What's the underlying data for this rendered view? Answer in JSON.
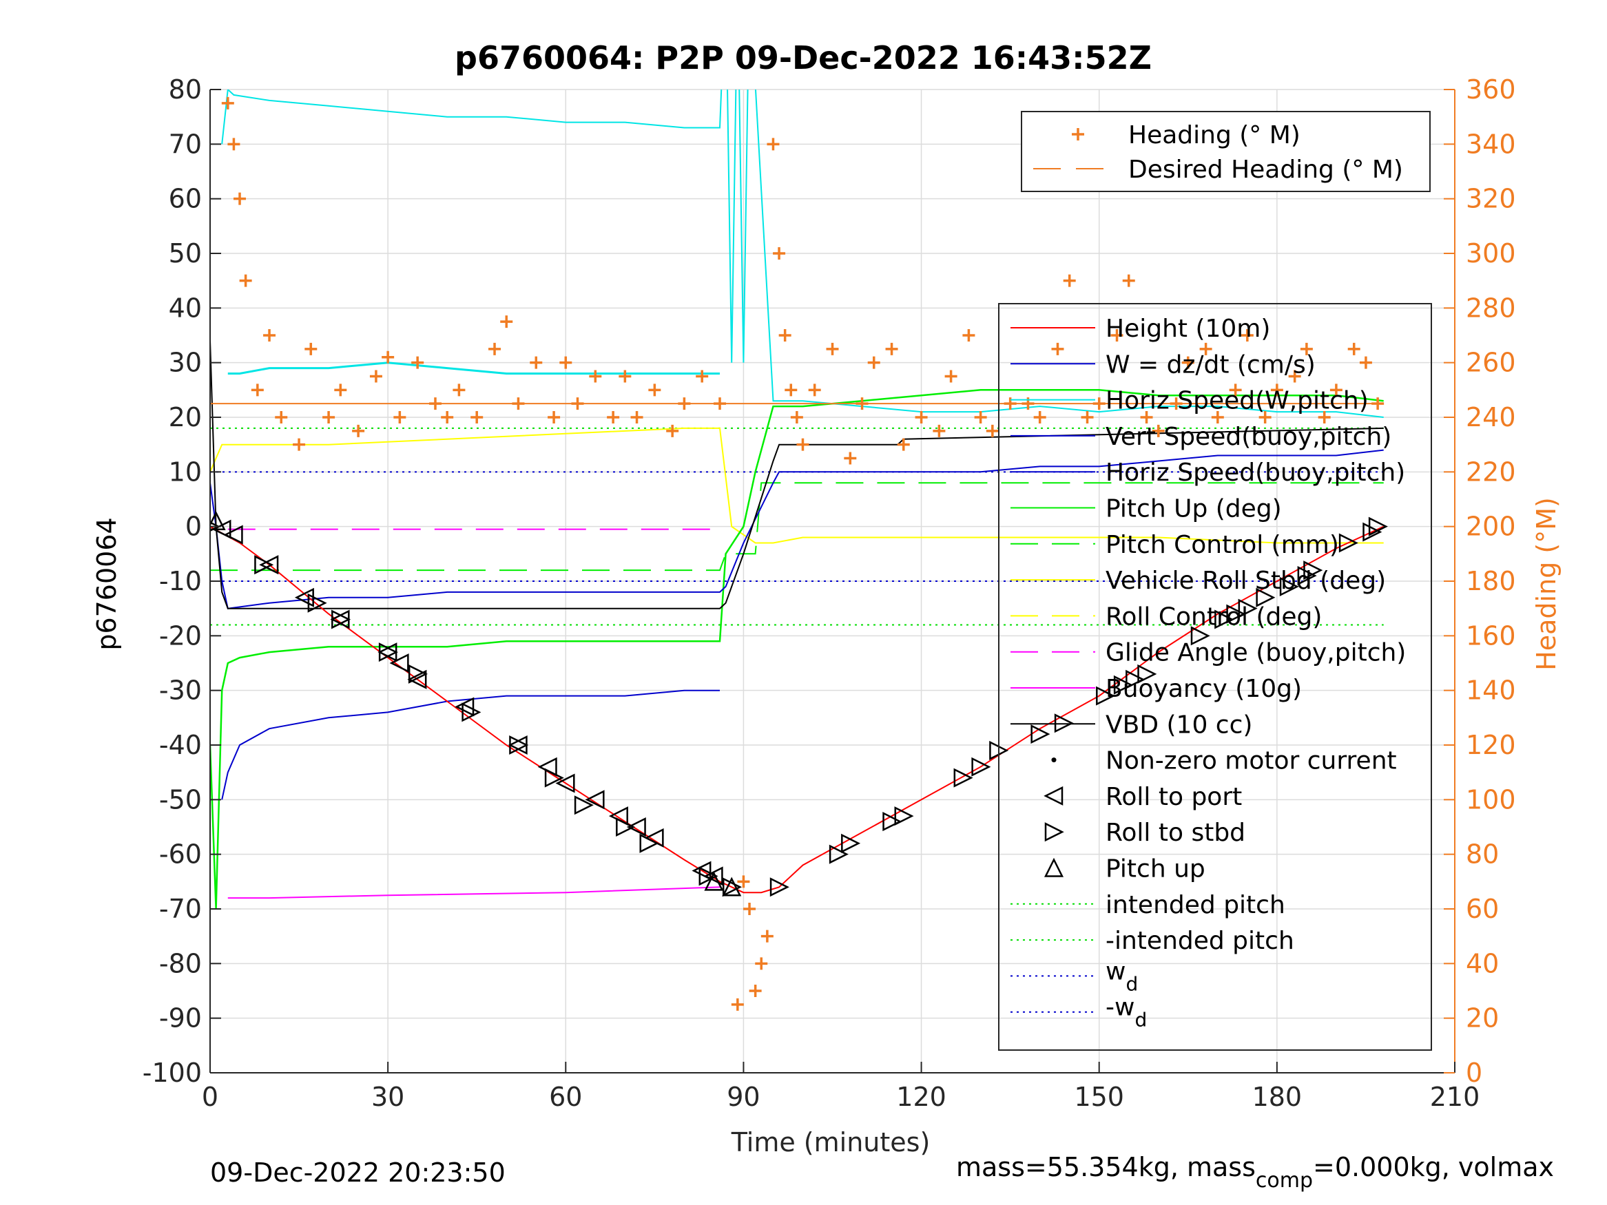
{
  "chart_data": {
    "type": "line",
    "title": "p6760064: P2P 09-Dec-2022 16:43:52Z",
    "xlabel": "Time (minutes)",
    "ylabel": "p6760064",
    "y2label": "Heading (°M)",
    "xlim": [
      0,
      210
    ],
    "ylim": [
      -100,
      80
    ],
    "y2lim": [
      0,
      360
    ],
    "xticks": [
      "0",
      "30",
      "60",
      "90",
      "120",
      "150",
      "180",
      "210"
    ],
    "yticks": [
      "80",
      "70",
      "60",
      "50",
      "40",
      "30",
      "20",
      "10",
      "0",
      "-10",
      "-20",
      "-30",
      "-40",
      "-50",
      "-60",
      "-70",
      "-80",
      "-90",
      "-100"
    ],
    "y2ticks": [
      "360",
      "340",
      "320",
      "300",
      "280",
      "260",
      "240",
      "220",
      "200",
      "180",
      "160",
      "140",
      "120",
      "100",
      "80",
      "60",
      "40",
      "20",
      "0"
    ],
    "grid": true,
    "footer_left": "09-Dec-2022 20:23:50",
    "footer_right": {
      "a": "mass=55.354kg, mass",
      "sub": "comp",
      "b": "=0.000kg, volmax"
    },
    "legend_heading": {
      "placement": "top-right",
      "entries": [
        "Heading (° M)",
        "Desired Heading (° M)"
      ]
    },
    "legend_main": {
      "placement": "right",
      "entries": [
        "Height (10m)",
        "W = dz/dt (cm/s)",
        "Horiz Speed(W,pitch)",
        "Vert Speed(buoy,pitch)",
        "Horiz Speed(buoy,pitch)",
        "Pitch Up (deg)",
        "Pitch Control (mm)",
        "Vehicle Roll Stbd (deg)",
        "Roll Control (deg)",
        "Glide Angle (buoy,pitch)",
        "Buoyancy (10g)",
        "VBD (10 cc)",
        "Non-zero motor current",
        "Roll to port",
        "Roll to stbd",
        "Pitch up",
        "intended pitch",
        "-intended pitch"
      ],
      "wd_base": "w",
      "wd_sub": "d",
      "neg_wd_base": "-w"
    },
    "colors": {
      "height": "#ff0000",
      "w": "#0000cc",
      "horiz_speed": "#00e5e5",
      "pitch": "#00ee00",
      "roll": "#ffff00",
      "glide": "#ff00ff",
      "vbd": "#000000",
      "heading": "#f07c22",
      "intended_pitch": "#00dd00",
      "wd": "#0000cc"
    },
    "height": {
      "x": [
        0,
        5,
        10,
        20,
        30,
        40,
        50,
        60,
        70,
        80,
        86,
        90,
        93,
        96,
        100,
        110,
        120,
        130,
        140,
        150,
        160,
        170,
        180,
        190,
        198
      ],
      "y": [
        0,
        -3,
        -7,
        -16,
        -24,
        -32,
        -40,
        -47,
        -54,
        -61,
        -65,
        -67,
        -67,
        -66,
        -62,
        -56,
        -50,
        -44,
        -37,
        -31,
        -23,
        -16,
        -10,
        -4,
        0
      ]
    },
    "vbd": {
      "x": [
        0,
        1,
        2,
        3,
        86,
        87,
        90,
        95,
        96,
        116,
        117,
        198
      ],
      "y": [
        34,
        0,
        -12,
        -15,
        -15,
        -14,
        -5,
        12,
        15,
        15,
        16,
        18
      ]
    },
    "w": {
      "x": [
        0,
        1,
        2,
        3,
        10,
        20,
        30,
        40,
        50,
        60,
        70,
        80,
        86,
        87,
        90,
        95,
        96,
        100,
        110,
        120,
        130,
        140,
        150,
        160,
        170,
        180,
        190,
        198
      ],
      "y": [
        8,
        0,
        -10,
        -15,
        -14,
        -13,
        -13,
        -12,
        -12,
        -12,
        -12,
        -12,
        -12,
        -11,
        -3,
        8,
        10,
        10,
        10,
        10,
        10,
        11,
        11,
        12,
        13,
        13,
        13,
        14
      ]
    },
    "vert_speed_buoy": {
      "x": [
        2,
        3,
        5,
        10,
        20,
        30,
        40,
        50,
        60,
        70,
        80,
        86
      ],
      "y": [
        -50,
        -45,
        -40,
        -37,
        -35,
        -34,
        -32,
        -31,
        -31,
        -31,
        -30,
        -30
      ]
    },
    "horiz_speed": {
      "x": [
        2,
        3,
        4,
        10,
        20,
        30,
        40,
        50,
        60,
        70,
        80,
        86,
        87,
        88,
        89,
        90,
        91,
        95,
        100,
        110,
        120,
        130,
        140,
        150,
        160,
        170,
        180,
        190,
        198
      ],
      "y": [
        70,
        80,
        79,
        78,
        77,
        76,
        75,
        75,
        74,
        74,
        73,
        73,
        100,
        30,
        100,
        30,
        100,
        23,
        23,
        22,
        21,
        21,
        22,
        21,
        22,
        22,
        21,
        21,
        20
      ]
    },
    "horiz_speed_w": {
      "x": [
        3,
        5,
        10,
        20,
        30,
        40,
        50,
        60,
        70,
        80,
        86
      ],
      "y": [
        28,
        28,
        29,
        29,
        30,
        29,
        28,
        28,
        28,
        28,
        28
      ]
    },
    "pitch_up": {
      "x": [
        0,
        1,
        2,
        3,
        5,
        10,
        20,
        30,
        40,
        50,
        60,
        70,
        80,
        86,
        87,
        90,
        92,
        95,
        100,
        110,
        120,
        130,
        140,
        150,
        160,
        170,
        180,
        190,
        198
      ],
      "y": [
        -40,
        -70,
        -30,
        -25,
        -24,
        -23,
        -22,
        -22,
        -22,
        -21,
        -21,
        -21,
        -21,
        -21,
        -5,
        0,
        10,
        22,
        22,
        23,
        24,
        25,
        25,
        25,
        24,
        24,
        24,
        24,
        23
      ]
    },
    "pitch_control": {
      "x": [
        0,
        86,
        87,
        92,
        93,
        198
      ],
      "y": [
        -8,
        -8,
        -5,
        -5,
        8,
        8
      ]
    },
    "roll_control": {
      "x": [
        0,
        2,
        3,
        20,
        40,
        60,
        80,
        86,
        88,
        92,
        95,
        100,
        120,
        140,
        160,
        180,
        198
      ],
      "y": [
        10,
        15,
        15,
        15,
        16,
        17,
        18,
        18,
        0,
        -3,
        -3,
        -2,
        -2,
        -2,
        -2,
        -3,
        -3
      ]
    },
    "glide_angle": {
      "x": [
        3,
        86
      ],
      "y": [
        -0.5,
        -0.5
      ]
    },
    "buoyancy": {
      "x": [
        3,
        10,
        30,
        60,
        86
      ],
      "y": [
        -68,
        -68,
        -67.5,
        -67,
        -66
      ]
    },
    "desired_heading": {
      "x": [
        0,
        198
      ],
      "y": [
        245,
        245
      ]
    },
    "intended_pitch": 18,
    "wd": 10,
    "heading": {
      "x": [
        3,
        4,
        5,
        6,
        8,
        10,
        12,
        15,
        17,
        20,
        22,
        25,
        28,
        30,
        32,
        35,
        38,
        40,
        42,
        45,
        48,
        50,
        52,
        55,
        58,
        60,
        62,
        65,
        68,
        70,
        72,
        75,
        78,
        80,
        83,
        86,
        89,
        90,
        91,
        92,
        93,
        94,
        95,
        96,
        97,
        98,
        99,
        100,
        102,
        105,
        108,
        110,
        112,
        115,
        117,
        120,
        123,
        125,
        128,
        130,
        132,
        135,
        138,
        140,
        143,
        145,
        148,
        150,
        153,
        155,
        158,
        160,
        163,
        165,
        168,
        170,
        173,
        175,
        178,
        180,
        183,
        185,
        188,
        190,
        193,
        195,
        197
      ],
      "y": [
        355,
        340,
        320,
        290,
        250,
        270,
        240,
        230,
        265,
        240,
        250,
        235,
        255,
        262,
        240,
        260,
        245,
        240,
        250,
        240,
        265,
        275,
        245,
        260,
        240,
        260,
        245,
        255,
        240,
        255,
        240,
        250,
        235,
        245,
        255,
        245,
        25,
        70,
        60,
        30,
        40,
        50,
        340,
        300,
        270,
        250,
        240,
        230,
        250,
        265,
        225,
        245,
        260,
        265,
        230,
        240,
        235,
        255,
        270,
        240,
        235,
        245,
        245,
        240,
        265,
        290,
        240,
        245,
        270,
        290,
        240,
        235,
        245,
        260,
        265,
        240,
        250,
        270,
        240,
        250,
        255,
        265,
        240,
        250,
        265,
        260,
        245
      ]
    },
    "roll_to_port_markers": {
      "x": [
        2,
        4,
        10,
        16,
        22,
        30,
        32,
        35,
        43,
        52,
        57,
        60,
        65,
        69,
        72,
        75,
        83,
        85
      ],
      "y": [
        -0.5,
        -1.5,
        -7,
        -13,
        -17,
        -23,
        -25,
        -28,
        -33,
        -40,
        -44,
        -47,
        -50,
        -53,
        -55,
        -57,
        -63,
        -64
      ]
    },
    "roll_to_stbd_markers": {
      "x": [
        0,
        9,
        18,
        22,
        30,
        35,
        44,
        52,
        58,
        63,
        70,
        74,
        84,
        88,
        96,
        106,
        108,
        115,
        117,
        127,
        130,
        133,
        140,
        144,
        151,
        154,
        156,
        158,
        167,
        171,
        173,
        175,
        178,
        182,
        185,
        186,
        192,
        196,
        197
      ],
      "y": [
        0,
        -7,
        -14,
        -17,
        -23,
        -27,
        -34,
        -40,
        -46,
        -51,
        -55,
        -58,
        -64,
        -66,
        -66,
        -60,
        -58,
        -54,
        -53,
        -46,
        -44,
        -41,
        -38,
        -36,
        -31,
        -29,
        -28,
        -27,
        -20,
        -17,
        -16,
        -15,
        -13,
        -11,
        -9,
        -8,
        -3,
        -1,
        0
      ]
    },
    "pitch_up_markers": {
      "x": [
        1,
        85,
        88
      ],
      "y": [
        1,
        -65,
        -66
      ]
    }
  }
}
